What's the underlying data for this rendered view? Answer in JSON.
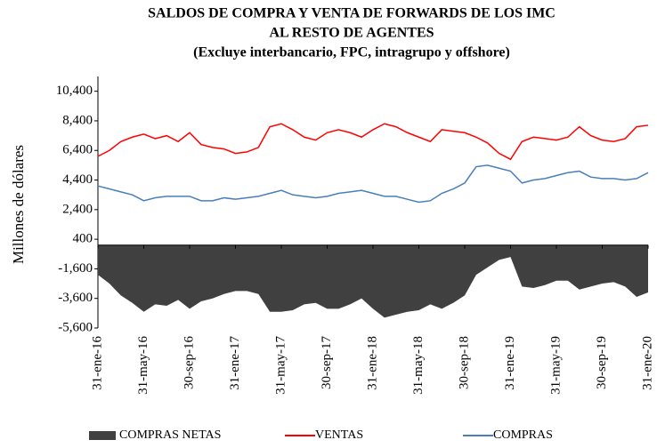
{
  "chart_data": {
    "type": "line",
    "title": [
      "SALDOS DE COMPRA Y VENTA DE FORWARDS DE LOS IMC",
      "AL RESTO DE AGENTES"
    ],
    "subtitle": "(Excluye interbancario, FPC, intragrupo y offshore)",
    "y_label": "Millones de dólares",
    "categories": [
      "31-ene-16",
      null,
      null,
      null,
      "31-may-16",
      null,
      null,
      null,
      "30-sep-16",
      null,
      null,
      null,
      "31-ene-17",
      null,
      null,
      null,
      "31-may-17",
      null,
      null,
      null,
      "30-sep-17",
      null,
      null,
      null,
      "31-ene-18",
      null,
      null,
      null,
      "31-may-18",
      null,
      null,
      null,
      "30-sep-18",
      null,
      null,
      null,
      "31-ene-19",
      null,
      null,
      null,
      "31-may-19",
      null,
      null,
      null,
      "30-sep-19",
      null,
      null,
      null,
      "31-ene-20"
    ],
    "series": [
      {
        "name": "COMPRAS NETAS",
        "color": "#404040",
        "kind": "area",
        "values": [
          -2000,
          -2600,
          -3400,
          -3900,
          -4500,
          -4000,
          -4100,
          -3700,
          -4300,
          -3800,
          -3600,
          -3300,
          -3100,
          -3100,
          -3300,
          -4500,
          -4500,
          -4400,
          -4000,
          -3900,
          -4300,
          -4300,
          -4000,
          -3600,
          -4300,
          -4900,
          -4700,
          -4500,
          -4400,
          -4000,
          -4300,
          -3900,
          -3400,
          -2000,
          -1500,
          -1000,
          -800,
          -2800,
          -2900,
          -2700,
          -2400,
          -2400,
          -3000,
          -2800,
          -2600,
          -2500,
          -2800,
          -3500,
          -3200
        ]
      },
      {
        "name": "VENTAS",
        "color": "#ff0000",
        "kind": "line",
        "values": [
          6000,
          6400,
          7000,
          7300,
          7500,
          7200,
          7400,
          7000,
          7600,
          6800,
          6600,
          6500,
          6200,
          6300,
          6600,
          8000,
          8200,
          7800,
          7300,
          7100,
          7600,
          7800,
          7600,
          7300,
          7800,
          8200,
          8000,
          7600,
          7300,
          7000,
          7800,
          7700,
          7600,
          7300,
          6900,
          6200,
          5800,
          7000,
          7300,
          7200,
          7100,
          7300,
          8000,
          7400,
          7100,
          7000,
          7200,
          8000,
          8100
        ]
      },
      {
        "name": "COMPRAS",
        "color": "#4a7ebb",
        "kind": "line",
        "values": [
          4000,
          3800,
          3600,
          3400,
          3000,
          3200,
          3300,
          3300,
          3300,
          3000,
          3000,
          3200,
          3100,
          3200,
          3300,
          3500,
          3700,
          3400,
          3300,
          3200,
          3300,
          3500,
          3600,
          3700,
          3500,
          3300,
          3300,
          3100,
          2900,
          3000,
          3500,
          3800,
          4200,
          5300,
          5400,
          5200,
          5000,
          4200,
          4400,
          4500,
          4700,
          4900,
          5000,
          4600,
          4500,
          4500,
          4400,
          4500,
          4900
        ]
      }
    ],
    "ylim": [
      -5600,
      11400
    ],
    "yticks": [
      {
        "value": -5600,
        "label": "-5,600"
      },
      {
        "value": -3600,
        "label": "-3,600"
      },
      {
        "value": -1600,
        "label": "-1,600"
      },
      400,
      {
        "value": 2400,
        "label": "2,400"
      },
      {
        "value": 4400,
        "label": "4,400"
      },
      {
        "value": 6400,
        "label": "6,400"
      },
      {
        "value": 8400,
        "label": "8,400"
      },
      {
        "value": 10400,
        "label": "10,400"
      }
    ],
    "legend": "bottom"
  }
}
